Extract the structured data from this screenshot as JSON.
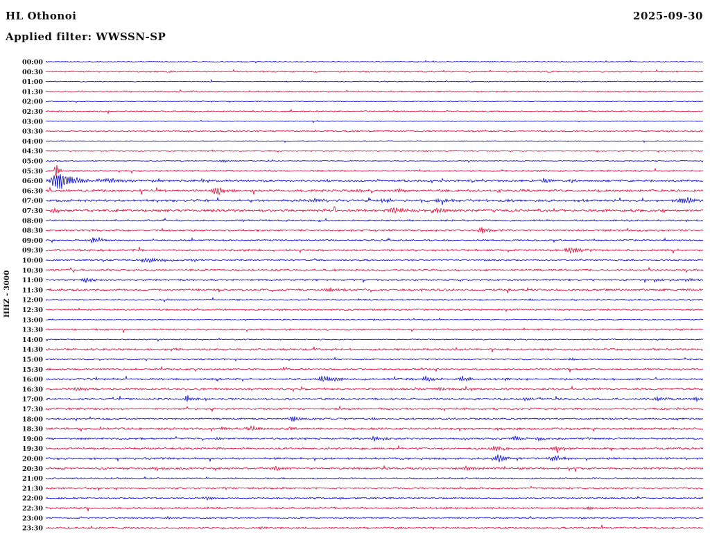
{
  "header": {
    "station": "HL Othonoi",
    "date": "2025-09-30",
    "filter": "Applied filter: WWSSN-SP",
    "y_axis_label": "HHZ - 3000"
  },
  "chart_data": {
    "type": "line",
    "variant": "helicorder-seismogram",
    "title": "HL Othonoi",
    "subtitle": "Applied filter: WWSSN-SP",
    "date": "2025-09-30",
    "xlabel": "",
    "ylabel": "HHZ - 3000",
    "minutes_per_row": 30,
    "time_range": [
      "00:00",
      "23:30"
    ],
    "grid": false,
    "legend": "none",
    "colors": {
      "blue": "#0000cc",
      "red": "#dd0033"
    },
    "rows": [
      {
        "label": "00:00",
        "color": "blue",
        "noise": 0.5,
        "events": []
      },
      {
        "label": "00:30",
        "color": "red",
        "noise": 0.7,
        "events": [
          {
            "f": 0.19,
            "a": 1.5,
            "w": 0.004
          }
        ]
      },
      {
        "label": "01:00",
        "color": "blue",
        "noise": 0.5,
        "events": []
      },
      {
        "label": "01:30",
        "color": "red",
        "noise": 0.7,
        "events": []
      },
      {
        "label": "02:00",
        "color": "blue",
        "noise": 0.4,
        "events": []
      },
      {
        "label": "02:30",
        "color": "red",
        "noise": 0.7,
        "events": [
          {
            "f": 0.02,
            "a": 1.5,
            "w": 0.004
          }
        ]
      },
      {
        "label": "03:00",
        "color": "blue",
        "noise": 0.4,
        "events": []
      },
      {
        "label": "03:30",
        "color": "red",
        "noise": 0.8,
        "events": []
      },
      {
        "label": "04:00",
        "color": "blue",
        "noise": 0.4,
        "events": []
      },
      {
        "label": "04:30",
        "color": "red",
        "noise": 0.6,
        "events": []
      },
      {
        "label": "05:00",
        "color": "blue",
        "noise": 0.5,
        "events": [
          {
            "f": 0.27,
            "a": 2,
            "w": 0.012
          }
        ]
      },
      {
        "label": "05:30",
        "color": "red",
        "noise": 0.8,
        "events": [
          {
            "f": 0.016,
            "a": 11,
            "w": 0.004
          },
          {
            "f": 0.75,
            "a": 1.5,
            "w": 0.008
          }
        ]
      },
      {
        "label": "06:00",
        "color": "blue",
        "noise": 1.0,
        "events": [
          {
            "f": 0.02,
            "a": 16,
            "w": 0.018
          },
          {
            "f": 0.1,
            "a": 3,
            "w": 0.03
          },
          {
            "f": 0.24,
            "a": 2.5,
            "w": 0.01
          },
          {
            "f": 0.76,
            "a": 3.5,
            "w": 0.012
          },
          {
            "f": 0.8,
            "a": 3,
            "w": 0.008
          }
        ]
      },
      {
        "label": "06:30",
        "color": "red",
        "noise": 1.2,
        "events": [
          {
            "f": 0.26,
            "a": 6,
            "w": 0.012
          },
          {
            "f": 0.48,
            "a": 2,
            "w": 0.01
          },
          {
            "f": 0.54,
            "a": 2.5,
            "w": 0.015
          },
          {
            "f": 0.6,
            "a": 2.5,
            "w": 0.012
          },
          {
            "f": 0.69,
            "a": 2,
            "w": 0.008
          }
        ]
      },
      {
        "label": "07:00",
        "color": "blue",
        "noise": 1.2,
        "events": [
          {
            "f": 0.41,
            "a": 3,
            "w": 0.015
          },
          {
            "f": 0.52,
            "a": 2.5,
            "w": 0.012
          },
          {
            "f": 0.6,
            "a": 3,
            "w": 0.015
          },
          {
            "f": 0.82,
            "a": 2,
            "w": 0.008
          },
          {
            "f": 0.97,
            "a": 4.5,
            "w": 0.02
          }
        ]
      },
      {
        "label": "07:30",
        "color": "red",
        "noise": 1.3,
        "events": [
          {
            "f": 0.012,
            "a": 4,
            "w": 0.01
          },
          {
            "f": 0.53,
            "a": 4.5,
            "w": 0.02
          },
          {
            "f": 0.6,
            "a": 4.5,
            "w": 0.018
          },
          {
            "f": 0.75,
            "a": 2,
            "w": 0.006
          }
        ]
      },
      {
        "label": "08:00",
        "color": "blue",
        "noise": 0.8,
        "events": [
          {
            "f": 0.3,
            "a": 1.5,
            "w": 0.006
          }
        ]
      },
      {
        "label": "08:30",
        "color": "red",
        "noise": 1.0,
        "events": [
          {
            "f": 0.665,
            "a": 5,
            "w": 0.014
          }
        ]
      },
      {
        "label": "09:00",
        "color": "blue",
        "noise": 0.8,
        "events": [
          {
            "f": 0.072,
            "a": 4,
            "w": 0.012
          }
        ]
      },
      {
        "label": "09:30",
        "color": "red",
        "noise": 1.0,
        "events": [
          {
            "f": 0.8,
            "a": 4.5,
            "w": 0.018
          }
        ]
      },
      {
        "label": "10:00",
        "color": "blue",
        "noise": 0.8,
        "events": [
          {
            "f": 0.155,
            "a": 4,
            "w": 0.02
          },
          {
            "f": 0.225,
            "a": 2,
            "w": 0.006
          }
        ]
      },
      {
        "label": "10:30",
        "color": "red",
        "noise": 1.0,
        "events": [
          {
            "f": 0.99,
            "a": 2,
            "w": 0.006
          }
        ]
      },
      {
        "label": "11:00",
        "color": "blue",
        "noise": 0.9,
        "events": [
          {
            "f": 0.062,
            "a": 4,
            "w": 0.012
          },
          {
            "f": 0.93,
            "a": 3,
            "w": 0.01
          },
          {
            "f": 0.975,
            "a": 3,
            "w": 0.008
          }
        ]
      },
      {
        "label": "11:30",
        "color": "red",
        "noise": 1.1,
        "events": [
          {
            "f": 0.43,
            "a": 3,
            "w": 0.012
          }
        ]
      },
      {
        "label": "12:00",
        "color": "blue",
        "noise": 0.7,
        "events": [
          {
            "f": 0.63,
            "a": 1.5,
            "w": 0.005
          },
          {
            "f": 0.74,
            "a": 1.5,
            "w": 0.005
          }
        ]
      },
      {
        "label": "12:30",
        "color": "red",
        "noise": 0.9,
        "events": [
          {
            "f": 0.655,
            "a": 2,
            "w": 0.006
          }
        ]
      },
      {
        "label": "13:00",
        "color": "blue",
        "noise": 0.6,
        "events": [
          {
            "f": 0.5,
            "a": 1.5,
            "w": 0.004
          }
        ]
      },
      {
        "label": "13:30",
        "color": "red",
        "noise": 0.9,
        "events": []
      },
      {
        "label": "14:00",
        "color": "blue",
        "noise": 0.6,
        "events": []
      },
      {
        "label": "14:30",
        "color": "red",
        "noise": 1.0,
        "events": [
          {
            "f": 0.2,
            "a": 2,
            "w": 0.006
          }
        ]
      },
      {
        "label": "15:00",
        "color": "blue",
        "noise": 0.7,
        "events": [
          {
            "f": 0.27,
            "a": 1.5,
            "w": 0.005
          },
          {
            "f": 0.8,
            "a": 2,
            "w": 0.006
          }
        ]
      },
      {
        "label": "15:30",
        "color": "red",
        "noise": 0.9,
        "events": []
      },
      {
        "label": "16:00",
        "color": "blue",
        "noise": 1.0,
        "events": [
          {
            "f": 0.425,
            "a": 5,
            "w": 0.016
          },
          {
            "f": 0.58,
            "a": 4,
            "w": 0.012
          },
          {
            "f": 0.635,
            "a": 4,
            "w": 0.012
          },
          {
            "f": 0.7,
            "a": 2,
            "w": 0.006
          },
          {
            "f": 0.82,
            "a": 2,
            "w": 0.006
          }
        ]
      },
      {
        "label": "16:30",
        "color": "red",
        "noise": 1.0,
        "events": [
          {
            "f": 0.05,
            "a": 4,
            "w": 0.01
          },
          {
            "f": 0.6,
            "a": 3,
            "w": 0.008
          }
        ]
      },
      {
        "label": "17:00",
        "color": "blue",
        "noise": 0.9,
        "events": [
          {
            "f": 0.215,
            "a": 6,
            "w": 0.006
          },
          {
            "f": 0.5,
            "a": 2,
            "w": 0.006
          },
          {
            "f": 0.73,
            "a": 2.5,
            "w": 0.008
          },
          {
            "f": 0.93,
            "a": 3.5,
            "w": 0.012
          },
          {
            "f": 0.99,
            "a": 4,
            "w": 0.01
          }
        ]
      },
      {
        "label": "17:30",
        "color": "red",
        "noise": 1.0,
        "events": [
          {
            "f": 0.05,
            "a": 2,
            "w": 0.005
          }
        ]
      },
      {
        "label": "18:00",
        "color": "blue",
        "noise": 0.9,
        "events": [
          {
            "f": 0.375,
            "a": 4,
            "w": 0.01
          },
          {
            "f": 0.5,
            "a": 2,
            "w": 0.008
          }
        ]
      },
      {
        "label": "18:30",
        "color": "red",
        "noise": 1.1,
        "events": [
          {
            "f": 0.27,
            "a": 3.5,
            "w": 0.01
          },
          {
            "f": 0.315,
            "a": 3.5,
            "w": 0.01
          },
          {
            "f": 0.37,
            "a": 3,
            "w": 0.008
          }
        ]
      },
      {
        "label": "19:00",
        "color": "blue",
        "noise": 1.0,
        "events": [
          {
            "f": 0.26,
            "a": 2,
            "w": 0.006
          },
          {
            "f": 0.5,
            "a": 4,
            "w": 0.01
          },
          {
            "f": 0.715,
            "a": 4,
            "w": 0.008
          },
          {
            "f": 0.75,
            "a": 3,
            "w": 0.006
          }
        ]
      },
      {
        "label": "19:30",
        "color": "red",
        "noise": 1.1,
        "events": [
          {
            "f": 0.685,
            "a": 4.5,
            "w": 0.012
          },
          {
            "f": 0.78,
            "a": 4,
            "w": 0.012
          }
        ]
      },
      {
        "label": "20:00",
        "color": "blue",
        "noise": 1.0,
        "events": [
          {
            "f": 0.585,
            "a": 3,
            "w": 0.008
          },
          {
            "f": 0.69,
            "a": 5,
            "w": 0.012
          },
          {
            "f": 0.775,
            "a": 5,
            "w": 0.014
          }
        ]
      },
      {
        "label": "20:30",
        "color": "red",
        "noise": 1.1,
        "events": [
          {
            "f": 0.17,
            "a": 3,
            "w": 0.008
          },
          {
            "f": 0.35,
            "a": 3,
            "w": 0.012
          },
          {
            "f": 0.64,
            "a": 3.5,
            "w": 0.012
          }
        ]
      },
      {
        "label": "21:00",
        "color": "blue",
        "noise": 0.7,
        "events": []
      },
      {
        "label": "21:30",
        "color": "red",
        "noise": 0.9,
        "events": []
      },
      {
        "label": "22:00",
        "color": "blue",
        "noise": 0.8,
        "events": [
          {
            "f": 0.245,
            "a": 3,
            "w": 0.01
          }
        ]
      },
      {
        "label": "22:30",
        "color": "red",
        "noise": 1.0,
        "events": [
          {
            "f": 0.825,
            "a": 3,
            "w": 0.008
          }
        ]
      },
      {
        "label": "23:00",
        "color": "blue",
        "noise": 0.7,
        "events": [
          {
            "f": 0.185,
            "a": 2.5,
            "w": 0.006
          }
        ]
      },
      {
        "label": "23:30",
        "color": "red",
        "noise": 0.9,
        "events": [
          {
            "f": 0.33,
            "a": 2,
            "w": 0.006
          }
        ]
      }
    ]
  }
}
